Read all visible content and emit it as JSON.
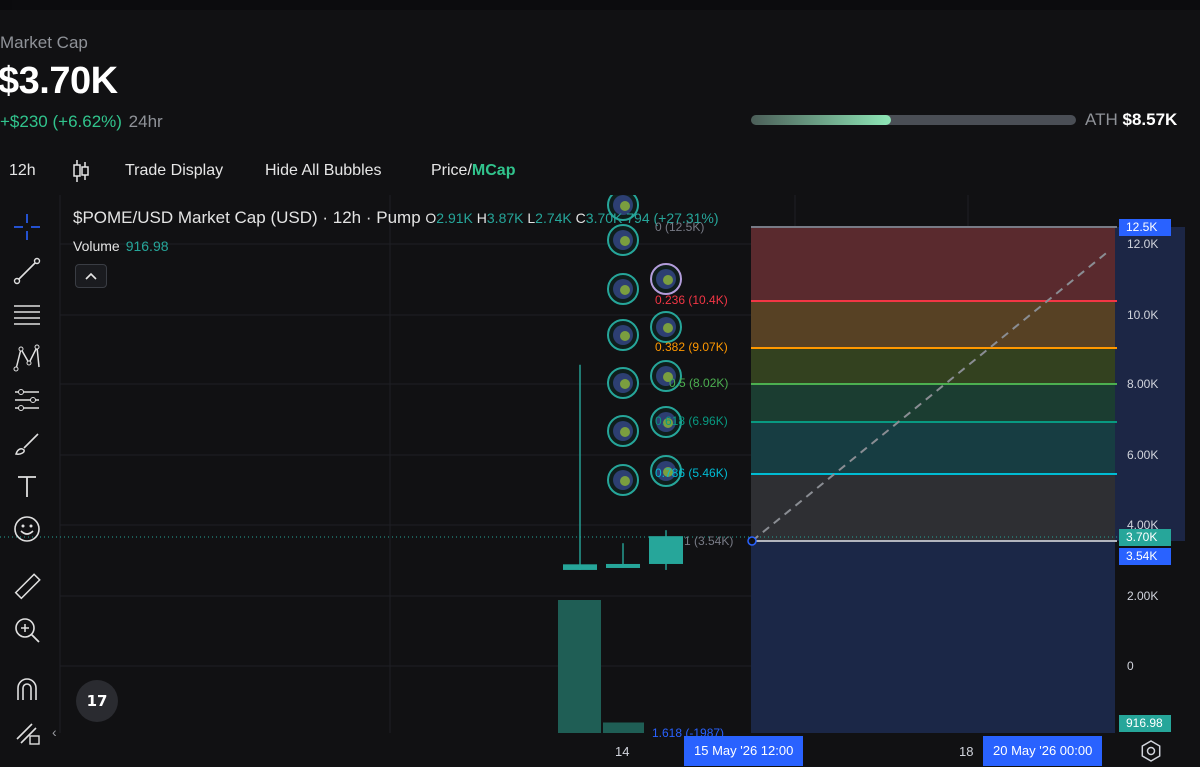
{
  "header": {
    "market_cap_label": "Market Cap",
    "market_cap_value": "$3.70K",
    "change_abs": "+$230",
    "change_pct": "(+6.62%)",
    "change_period": "24hr",
    "ath_label": "ATH",
    "ath_value": "$8.57K",
    "ath_progress": 0.43
  },
  "toolbar": {
    "interval": "12h",
    "trade_display": "Trade Display",
    "hide_bubbles": "Hide All Bubbles",
    "price_label": "Price",
    "separator": "/",
    "mcap_label": "MCap"
  },
  "legend": {
    "symbol": "$POME/USD Market Cap (USD) · 12h · Pump",
    "o_label": "O",
    "o_value": "2.91K",
    "h_label": "H",
    "h_value": "3.87K",
    "l_label": "L",
    "l_value": "2.74K",
    "c_label": "C",
    "c_value": "3.70K",
    "change": "794 (+27.31%)",
    "volume_label": "Volume",
    "volume_value": "916.98"
  },
  "chart_data": {
    "type": "candlestick",
    "y_axis_ticks": [
      "12.0K",
      "10.0K",
      "8.00K",
      "6.00K",
      "4.00K",
      "2.00K",
      "0"
    ],
    "y_axis_tags": [
      {
        "label": "12.5K",
        "color": "#2962ff"
      },
      {
        "label": "3.70K",
        "color": "#26a69a"
      },
      {
        "label": "3.54K",
        "color": "#2962ff"
      },
      {
        "label": "916.98",
        "color": "#26a69a"
      }
    ],
    "x_axis_ticks": [
      "14",
      "18"
    ],
    "x_axis_tags": [
      "15 May '26   12:00",
      "20 May '26   00:00"
    ],
    "fib_levels": [
      {
        "ratio": "0",
        "value": "(12.5K)",
        "color": "#787b86"
      },
      {
        "ratio": "0.236",
        "value": "(10.4K)",
        "color": "#f23645"
      },
      {
        "ratio": "0.382",
        "value": "(9.07K)",
        "color": "#ff9800"
      },
      {
        "ratio": "0.5",
        "value": "(8.02K)",
        "color": "#4caf50"
      },
      {
        "ratio": "0.618",
        "value": "(6.96K)",
        "color": "#089981"
      },
      {
        "ratio": "0.786",
        "value": "(5.46K)",
        "color": "#00bcd4"
      },
      {
        "ratio": "1",
        "value": "(3.54K)",
        "color": "#787b86"
      },
      {
        "ratio": "1.618",
        "value": "(-1987)",
        "color": "#2962ff"
      }
    ],
    "candles": [
      {
        "open": 2.74,
        "high": 8.57,
        "low": 2.74,
        "close": 2.9
      },
      {
        "open": 2.9,
        "high": 3.5,
        "low": 2.8,
        "close": 2.91
      },
      {
        "open": 2.91,
        "high": 3.87,
        "low": 2.74,
        "close": 3.7
      }
    ],
    "volumes": [
      1.9,
      0.15,
      0.0
    ]
  },
  "colors": {
    "up": "#26a69a",
    "accent": "#31c48d",
    "blue": "#2962ff"
  },
  "icons": {
    "tv_logo": "17"
  }
}
